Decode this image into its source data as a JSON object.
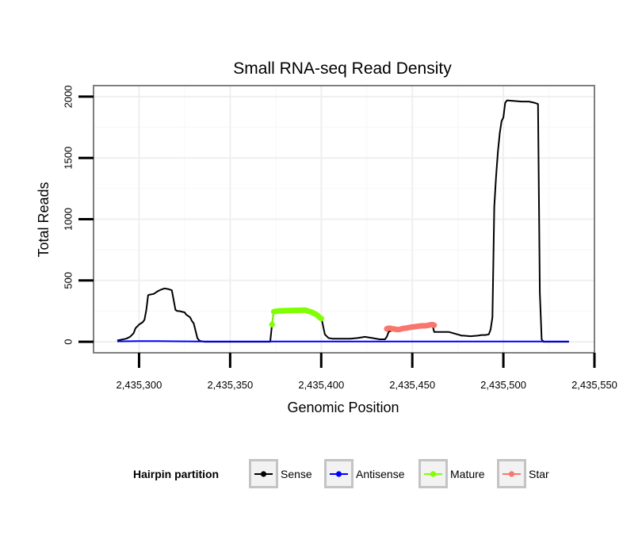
{
  "chart_data": {
    "type": "line",
    "title": "Small RNA-seq Read Density",
    "xlabel": "Genomic Position",
    "ylabel": "Total Reads",
    "xlim": [
      2435275,
      2435550
    ],
    "ylim": [
      -90,
      2090
    ],
    "x_ticks": [
      2435300,
      2435350,
      2435400,
      2435450,
      2435500,
      2435550
    ],
    "x_tick_labels": [
      "2,435,300",
      "2,435,350",
      "2,435,400",
      "2,435,450",
      "2,435,500",
      "2,435,550"
    ],
    "y_ticks": [
      0,
      500,
      1000,
      1500,
      2000
    ],
    "y_tick_labels": [
      "0",
      "500",
      "1000",
      "1500",
      "2000"
    ],
    "grid": true,
    "legend": {
      "title": "Hairpin partition",
      "position": "bottom",
      "entries": [
        "Sense",
        "Antisense",
        "Mature",
        "Star"
      ]
    },
    "series": [
      {
        "name": "Sense",
        "color": "#000000",
        "style": "line",
        "x": [
          2435288,
          2435293,
          2435295,
          2435297,
          2435298,
          2435300,
          2435302,
          2435303,
          2435304,
          2435305,
          2435306,
          2435308,
          2435309,
          2435310,
          2435312,
          2435314,
          2435316,
          2435318,
          2435320,
          2435321,
          2435322,
          2435325,
          2435326,
          2435328,
          2435329,
          2435330,
          2435332,
          2435333,
          2435334,
          2435336,
          2435372,
          2435373,
          2435374,
          2435376,
          2435380,
          2435385,
          2435390,
          2435394,
          2435398,
          2435400,
          2435402,
          2435404,
          2435406,
          2435410,
          2435416,
          2435420,
          2435424,
          2435428,
          2435432,
          2435435,
          2435436,
          2435437,
          2435440,
          2435446,
          2435452,
          2435458,
          2435461,
          2435462,
          2435464,
          2435466,
          2435470,
          2435476,
          2435477,
          2435478,
          2435482,
          2435486,
          2435488,
          2435490,
          2435492,
          2435493,
          2435494,
          2435495,
          2435496,
          2435497,
          2435498,
          2435499,
          2435500,
          2435501,
          2435502,
          2435510,
          2435514,
          2435517,
          2435519,
          2435520,
          2435521,
          2435522,
          2435536
        ],
        "y": [
          10,
          25,
          40,
          70,
          110,
          140,
          160,
          180,
          260,
          380,
          385,
          390,
          400,
          410,
          425,
          435,
          430,
          420,
          260,
          250,
          250,
          240,
          220,
          200,
          170,
          150,
          30,
          10,
          5,
          0,
          0,
          140,
          250,
          255,
          260,
          260,
          260,
          240,
          220,
          200,
          60,
          30,
          25,
          25,
          25,
          30,
          40,
          30,
          20,
          20,
          40,
          80,
          100,
          110,
          120,
          130,
          140,
          80,
          80,
          80,
          80,
          55,
          50,
          50,
          45,
          50,
          55,
          55,
          60,
          100,
          200,
          1100,
          1350,
          1550,
          1700,
          1800,
          1830,
          1950,
          1970,
          1960,
          1960,
          1950,
          1940,
          400,
          20,
          0,
          0
        ]
      },
      {
        "name": "Antisense",
        "color": "#0000ff",
        "style": "line",
        "x": [
          2435288,
          2435300,
          2435310,
          2435320,
          2435340,
          2435536
        ],
        "y": [
          3,
          5,
          6,
          4,
          2,
          2
        ]
      },
      {
        "name": "Mature",
        "color": "#7fff00",
        "style": "points",
        "x": [
          2435373,
          2435374,
          2435375,
          2435376,
          2435377,
          2435378,
          2435379,
          2435380,
          2435381,
          2435382,
          2435383,
          2435384,
          2435385,
          2435386,
          2435387,
          2435388,
          2435389,
          2435390,
          2435391,
          2435392,
          2435393,
          2435394,
          2435395,
          2435396,
          2435397,
          2435398,
          2435399,
          2435400
        ],
        "y": [
          140,
          245,
          248,
          250,
          252,
          252,
          253,
          254,
          254,
          255,
          255,
          255,
          256,
          256,
          256,
          257,
          257,
          258,
          258,
          255,
          250,
          245,
          240,
          232,
          225,
          215,
          200,
          190
        ]
      },
      {
        "name": "Star",
        "color": "#f8766d",
        "style": "points",
        "x": [
          2435436,
          2435437,
          2435438,
          2435439,
          2435440,
          2435441,
          2435442,
          2435443,
          2435444,
          2435445,
          2435446,
          2435447,
          2435448,
          2435449,
          2435450,
          2435451,
          2435452,
          2435453,
          2435454,
          2435455,
          2435456,
          2435457,
          2435458,
          2435459,
          2435460,
          2435461,
          2435462
        ],
        "y": [
          105,
          110,
          110,
          105,
          105,
          100,
          100,
          100,
          105,
          108,
          110,
          112,
          115,
          118,
          120,
          122,
          124,
          126,
          128,
          130,
          130,
          130,
          132,
          135,
          138,
          140,
          135
        ]
      }
    ]
  }
}
